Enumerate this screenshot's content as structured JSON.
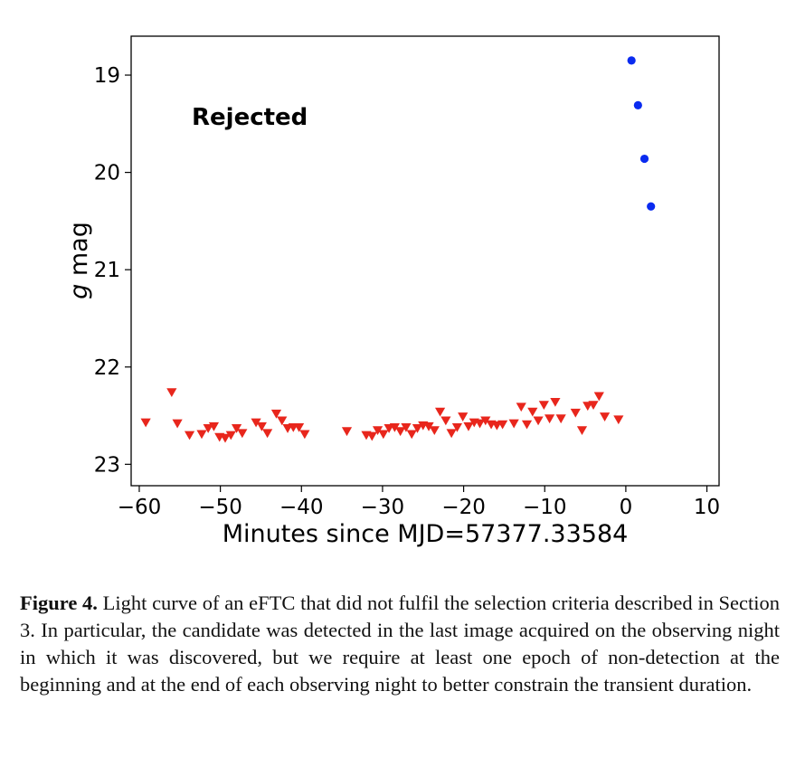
{
  "chart_data": {
    "type": "scatter",
    "xlabel": "Minutes since MJD=57377.33584",
    "ylabel_italic": "g",
    "ylabel_rest": " mag",
    "xlim": [
      -61,
      11.5
    ],
    "ylim": [
      23.22,
      18.6
    ],
    "y_inverted": true,
    "x_ticks": [
      -60,
      -50,
      -40,
      -30,
      -20,
      -10,
      0,
      10
    ],
    "x_tick_labels": [
      "−60",
      "−50",
      "−40",
      "−30",
      "−20",
      "−10",
      "0",
      "10"
    ],
    "y_ticks": [
      19,
      20,
      21,
      22,
      23
    ],
    "y_tick_labels": [
      "19",
      "20",
      "21",
      "22",
      "23"
    ],
    "annotation": "Rejected",
    "series": [
      {
        "marker": "circle",
        "color": "#0a2bf0",
        "points": [
          {
            "x": 0.7,
            "y": 18.85
          },
          {
            "x": 1.5,
            "y": 19.31
          },
          {
            "x": 2.3,
            "y": 19.86
          },
          {
            "x": 3.1,
            "y": 20.35
          }
        ]
      },
      {
        "marker": "triangle-down",
        "color": "#e8261c",
        "points": [
          {
            "x": -59.2,
            "y": 22.57
          },
          {
            "x": -56.0,
            "y": 22.26
          },
          {
            "x": -55.3,
            "y": 22.58
          },
          {
            "x": -53.8,
            "y": 22.7
          },
          {
            "x": -52.3,
            "y": 22.69
          },
          {
            "x": -51.5,
            "y": 22.63
          },
          {
            "x": -50.8,
            "y": 22.61
          },
          {
            "x": -50.1,
            "y": 22.72
          },
          {
            "x": -49.4,
            "y": 22.73
          },
          {
            "x": -48.7,
            "y": 22.7
          },
          {
            "x": -48.0,
            "y": 22.63
          },
          {
            "x": -47.3,
            "y": 22.68
          },
          {
            "x": -45.6,
            "y": 22.57
          },
          {
            "x": -44.9,
            "y": 22.61
          },
          {
            "x": -44.2,
            "y": 22.68
          },
          {
            "x": -43.1,
            "y": 22.48
          },
          {
            "x": -42.4,
            "y": 22.55
          },
          {
            "x": -41.7,
            "y": 22.63
          },
          {
            "x": -41.0,
            "y": 22.62
          },
          {
            "x": -40.3,
            "y": 22.62
          },
          {
            "x": -39.6,
            "y": 22.69
          },
          {
            "x": -34.4,
            "y": 22.66
          },
          {
            "x": -32.0,
            "y": 22.7
          },
          {
            "x": -31.3,
            "y": 22.71
          },
          {
            "x": -30.6,
            "y": 22.65
          },
          {
            "x": -29.9,
            "y": 22.69
          },
          {
            "x": -29.2,
            "y": 22.63
          },
          {
            "x": -28.5,
            "y": 22.62
          },
          {
            "x": -27.8,
            "y": 22.66
          },
          {
            "x": -27.1,
            "y": 22.62
          },
          {
            "x": -26.4,
            "y": 22.69
          },
          {
            "x": -25.7,
            "y": 22.63
          },
          {
            "x": -25.0,
            "y": 22.6
          },
          {
            "x": -24.3,
            "y": 22.61
          },
          {
            "x": -23.6,
            "y": 22.65
          },
          {
            "x": -22.9,
            "y": 22.46
          },
          {
            "x": -22.2,
            "y": 22.55
          },
          {
            "x": -21.5,
            "y": 22.68
          },
          {
            "x": -20.8,
            "y": 22.62
          },
          {
            "x": -20.1,
            "y": 22.51
          },
          {
            "x": -19.4,
            "y": 22.61
          },
          {
            "x": -18.7,
            "y": 22.57
          },
          {
            "x": -18.0,
            "y": 22.58
          },
          {
            "x": -17.3,
            "y": 22.55
          },
          {
            "x": -16.6,
            "y": 22.59
          },
          {
            "x": -15.9,
            "y": 22.6
          },
          {
            "x": -15.2,
            "y": 22.59
          },
          {
            "x": -13.8,
            "y": 22.58
          },
          {
            "x": -12.9,
            "y": 22.41
          },
          {
            "x": -12.2,
            "y": 22.59
          },
          {
            "x": -11.5,
            "y": 22.46
          },
          {
            "x": -10.8,
            "y": 22.55
          },
          {
            "x": -10.1,
            "y": 22.39
          },
          {
            "x": -9.4,
            "y": 22.53
          },
          {
            "x": -8.7,
            "y": 22.36
          },
          {
            "x": -8.0,
            "y": 22.53
          },
          {
            "x": -6.2,
            "y": 22.47
          },
          {
            "x": -5.4,
            "y": 22.65
          },
          {
            "x": -4.7,
            "y": 22.4
          },
          {
            "x": -4.0,
            "y": 22.39
          },
          {
            "x": -3.3,
            "y": 22.3
          },
          {
            "x": -2.6,
            "y": 22.51
          },
          {
            "x": -0.9,
            "y": 22.54
          }
        ]
      }
    ]
  },
  "caption": {
    "label": "Figure 4.",
    "text": "Light curve of an eFTC that did not fulfil the selection criteria described in Section 3. In particular, the candidate was detected in the last image acquired on the observing night in which it was discovered, but we require at least one epoch of non-detection at the beginning and at the end of each observing night to better constrain the transient duration."
  }
}
